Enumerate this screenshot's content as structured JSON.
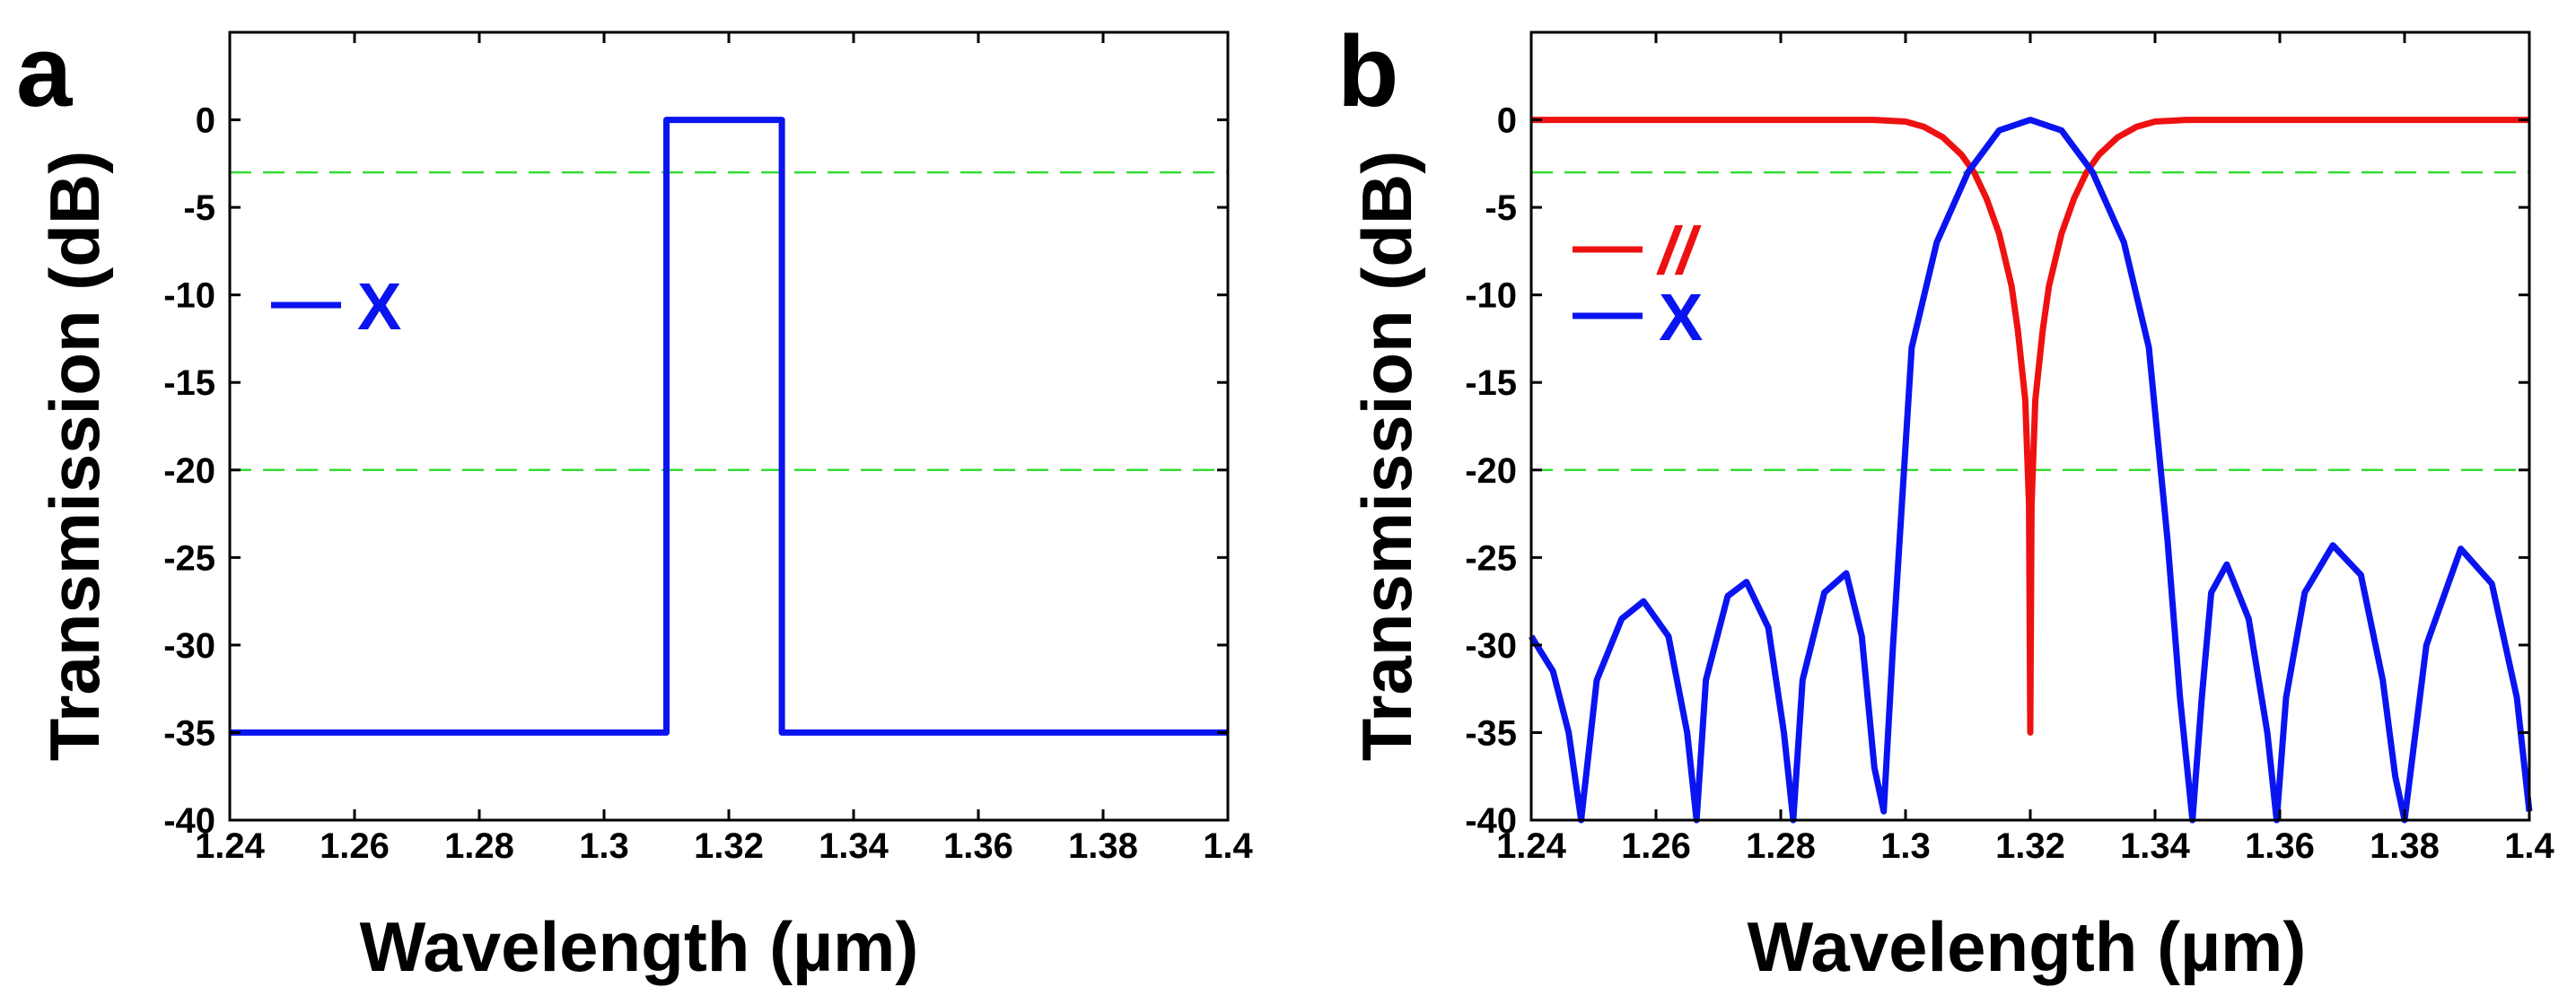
{
  "chart_data": [
    {
      "panel_label": "a",
      "type": "line",
      "xlabel": "Wavelength (µm)",
      "ylabel": "Transmission (dB)",
      "xlim": [
        1.24,
        1.4
      ],
      "ylim": [
        -40,
        5
      ],
      "xticks": [
        1.24,
        1.26,
        1.28,
        1.3,
        1.32,
        1.34,
        1.36,
        1.38,
        1.4
      ],
      "xtick_labels": [
        "1.24",
        "1.26",
        "1.28",
        "1.3",
        "1.32",
        "1.34",
        "1.36",
        "1.38",
        "1.4"
      ],
      "yticks": [
        0,
        -5,
        -10,
        -15,
        -20,
        -25,
        -30,
        -35,
        -40
      ],
      "ytick_labels": [
        "0",
        "-5",
        "-10",
        "-15",
        "-20",
        "-25",
        "-30",
        "-35",
        "-40"
      ],
      "reference_lines": [
        {
          "y": -3,
          "style": "dashed",
          "color": "#33dd33"
        },
        {
          "y": -20,
          "style": "dashed",
          "color": "#33dd33"
        }
      ],
      "series": [
        {
          "name": "X",
          "color": "#0a14f0",
          "x": [
            1.24,
            1.31,
            1.31,
            1.3285,
            1.3285,
            1.4
          ],
          "y": [
            -35,
            -35,
            0,
            0,
            -35,
            -35
          ]
        }
      ],
      "legend": {
        "position": "left",
        "entries": [
          {
            "label": "X",
            "color": "#0a14f0",
            "italic": false
          }
        ]
      }
    },
    {
      "panel_label": "b",
      "type": "line",
      "xlabel": "Wavelength (µm)",
      "ylabel": "Transmission (dB)",
      "xlim": [
        1.24,
        1.4
      ],
      "ylim": [
        -40,
        5
      ],
      "xticks": [
        1.24,
        1.26,
        1.28,
        1.3,
        1.32,
        1.34,
        1.36,
        1.38,
        1.4
      ],
      "xtick_labels": [
        "1.24",
        "1.26",
        "1.28",
        "1.3",
        "1.32",
        "1.34",
        "1.36",
        "1.38",
        "1.4"
      ],
      "yticks": [
        0,
        -5,
        -10,
        -15,
        -20,
        -25,
        -30,
        -35,
        -40
      ],
      "ytick_labels": [
        "0",
        "-5",
        "-10",
        "-15",
        "-20",
        "-25",
        "-30",
        "-35",
        "-40"
      ],
      "reference_lines": [
        {
          "y": -3,
          "style": "dashed",
          "color": "#33dd33"
        },
        {
          "y": -20,
          "style": "dashed",
          "color": "#33dd33"
        }
      ],
      "series": [
        {
          "name": "//",
          "color": "#ee1111",
          "x": [
            1.24,
            1.28,
            1.295,
            1.3,
            1.303,
            1.306,
            1.309,
            1.311,
            1.313,
            1.315,
            1.317,
            1.318,
            1.3192,
            1.3198,
            1.32,
            1.3202,
            1.3208,
            1.322,
            1.323,
            1.325,
            1.327,
            1.329,
            1.331,
            1.334,
            1.337,
            1.34,
            1.345,
            1.36,
            1.4
          ],
          "y": [
            0,
            0,
            0,
            -0.1,
            -0.4,
            -1.0,
            -2.0,
            -3.0,
            -4.5,
            -6.5,
            -9.5,
            -12,
            -16,
            -22,
            -35,
            -22,
            -16,
            -12,
            -9.5,
            -6.5,
            -4.5,
            -3.0,
            -2.0,
            -1.0,
            -0.4,
            -0.1,
            0,
            0,
            0
          ]
        },
        {
          "name": "X",
          "color": "#0a14f0",
          "x": [
            1.24,
            1.2435,
            1.246,
            1.248,
            1.2505,
            1.2545,
            1.258,
            1.262,
            1.265,
            1.2665,
            1.268,
            1.2715,
            1.2745,
            1.278,
            1.2805,
            1.282,
            1.2835,
            1.287,
            1.2905,
            1.293,
            1.295,
            1.2965,
            1.298,
            1.301,
            1.305,
            1.31,
            1.315,
            1.32,
            1.325,
            1.33,
            1.335,
            1.339,
            1.342,
            1.344,
            1.346,
            1.3475,
            1.349,
            1.3515,
            1.355,
            1.358,
            1.3595,
            1.361,
            1.364,
            1.3685,
            1.373,
            1.3765,
            1.3785,
            1.38,
            1.3835,
            1.389,
            1.394,
            1.398,
            1.4
          ],
          "y": [
            -29.5,
            -31.5,
            -35,
            -40,
            -32,
            -28.5,
            -27.5,
            -29.5,
            -35,
            -40,
            -32,
            -27.2,
            -26.4,
            -29,
            -35,
            -40,
            -32,
            -27,
            -25.9,
            -29.5,
            -37,
            -39.5,
            -30,
            -13,
            -7,
            -3,
            -0.6,
            0,
            -0.6,
            -3,
            -7,
            -13,
            -24,
            -33,
            -40,
            -33,
            -27,
            -25.4,
            -28.5,
            -35,
            -40,
            -33,
            -27,
            -24.3,
            -26,
            -32,
            -37.5,
            -40,
            -30,
            -24.5,
            -26.5,
            -33,
            -39.5
          ]
        }
      ],
      "legend": {
        "position": "left",
        "entries": [
          {
            "label": "//",
            "color": "#ee1111",
            "italic": true
          },
          {
            "label": "X",
            "color": "#0a14f0",
            "italic": false
          }
        ]
      }
    }
  ]
}
